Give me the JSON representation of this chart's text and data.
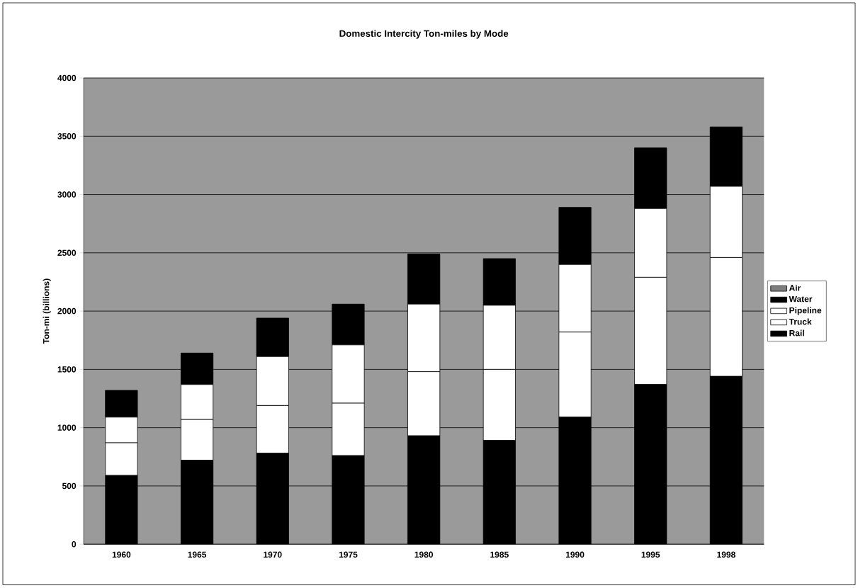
{
  "chart_data": {
    "type": "bar",
    "title": "Domestic Intercity Ton-miles by Mode",
    "ylabel": "Ton-mi (billions)",
    "categories": [
      "1960",
      "1965",
      "1970",
      "1975",
      "1980",
      "1985",
      "1990",
      "1995",
      "1998"
    ],
    "stacked": true,
    "series": [
      {
        "name": "Rail",
        "color": "#000000",
        "values": [
          590,
          720,
          780,
          760,
          930,
          890,
          1090,
          1370,
          1440
        ]
      },
      {
        "name": "Truck",
        "color": "#ffffff",
        "values": [
          280,
          350,
          410,
          450,
          550,
          610,
          730,
          920,
          1020
        ]
      },
      {
        "name": "Pipeline",
        "color": "#ffffff",
        "values": [
          220,
          300,
          420,
          500,
          580,
          550,
          580,
          590,
          610
        ]
      },
      {
        "name": "Water",
        "color": "#000000",
        "values": [
          230,
          270,
          330,
          350,
          430,
          400,
          490,
          520,
          510
        ]
      },
      {
        "name": "Air",
        "color": "#7f7f7f",
        "values": [
          null,
          null,
          null,
          null,
          null,
          null,
          null,
          null,
          null
        ]
      }
    ],
    "ylim": [
      0,
      4000
    ],
    "yticks": [
      0,
      500,
      1000,
      1500,
      2000,
      2500,
      3000,
      3500,
      4000
    ],
    "grid": "y",
    "legend": "right"
  }
}
